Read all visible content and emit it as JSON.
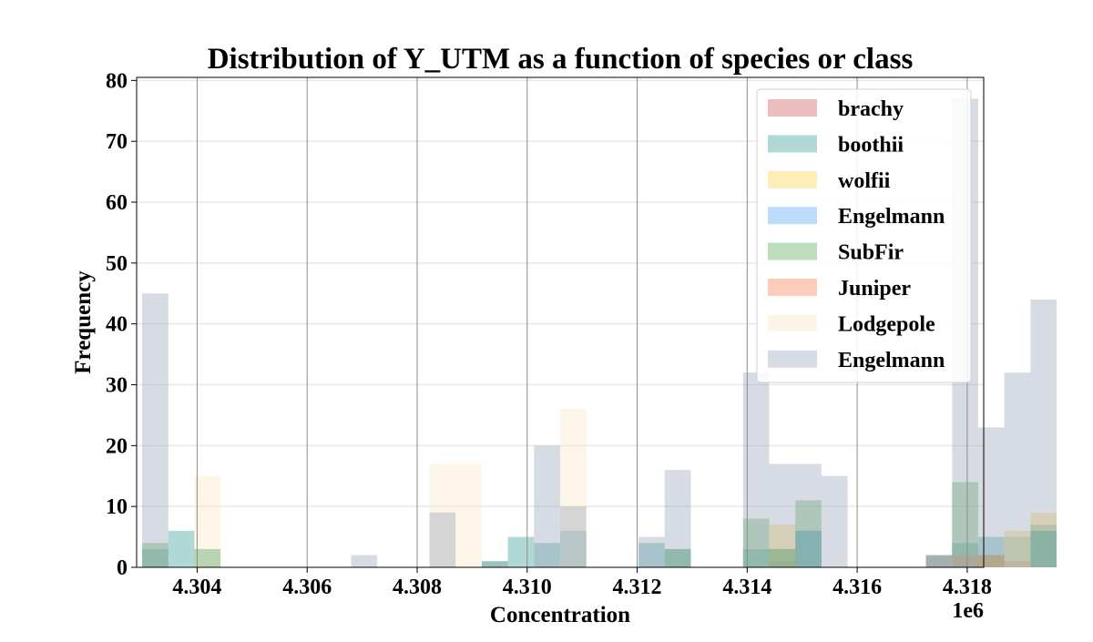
{
  "chart_data": {
    "type": "bar",
    "subtype": "overlaid-histogram",
    "title": "Distribution of Y_UTM as a function of species or class",
    "xlabel": "Concentration",
    "ylabel": "Frequency",
    "x_offset_label": "1e6",
    "xlim": [
      4302900,
      4318300
    ],
    "ylim": [
      0,
      80.5
    ],
    "x_ticks": [
      4304000,
      4306000,
      4308000,
      4310000,
      4312000,
      4314000,
      4316000,
      4318000
    ],
    "x_tick_labels": [
      "4.304",
      "4.306",
      "4.308",
      "4.310",
      "4.312",
      "4.314",
      "4.316",
      "4.318"
    ],
    "y_ticks": [
      0,
      10,
      20,
      30,
      40,
      50,
      60,
      70,
      80
    ],
    "y_tick_labels": [
      "0",
      "10",
      "20",
      "30",
      "40",
      "50",
      "60",
      "70",
      "80"
    ],
    "bin_start": 4303000,
    "bin_width": 475,
    "x_grid": true,
    "y_grid": true,
    "legend_position": "top-right",
    "bar_opacity": 0.4,
    "series": [
      {
        "name": "brachy",
        "color": "#cd5c5c",
        "bins": [
          [
            24,
            1
          ],
          [
            30,
            2
          ],
          [
            33,
            1
          ]
        ]
      },
      {
        "name": "boothii",
        "color": "#3a9e9a",
        "bins": [
          [
            0,
            3
          ],
          [
            1,
            6
          ],
          [
            2,
            3
          ],
          [
            13,
            1
          ],
          [
            14,
            5
          ],
          [
            15,
            4
          ],
          [
            16,
            6
          ],
          [
            19,
            4
          ],
          [
            20,
            3
          ],
          [
            23,
            3
          ],
          [
            24,
            3
          ],
          [
            25,
            6
          ],
          [
            30,
            2
          ],
          [
            31,
            4
          ],
          [
            32,
            5
          ],
          [
            33,
            1
          ],
          [
            34,
            7
          ]
        ]
      },
      {
        "name": "wolfii",
        "color": "#f9d34a",
        "bins": [
          [
            13,
            1
          ],
          [
            24,
            7
          ],
          [
            32,
            2
          ],
          [
            33,
            6
          ],
          [
            34,
            9
          ]
        ]
      },
      {
        "name": "Engelmann",
        "color": "#55a8f5",
        "bins": [
          [
            13,
            1
          ],
          [
            25,
            6
          ],
          [
            34,
            6
          ]
        ]
      },
      {
        "name": "SubFir",
        "color": "#5aac5a",
        "bins": [
          [
            0,
            4
          ],
          [
            2,
            3
          ],
          [
            20,
            3
          ],
          [
            23,
            8
          ],
          [
            24,
            3
          ],
          [
            25,
            11
          ],
          [
            31,
            14
          ],
          [
            32,
            2
          ],
          [
            33,
            5
          ],
          [
            34,
            6
          ]
        ]
      },
      {
        "name": "Juniper",
        "color": "#f98158",
        "bins": [
          [
            31,
            2
          ],
          [
            32,
            2
          ],
          [
            33,
            1
          ]
        ]
      },
      {
        "name": "Lodgepole",
        "color": "#fde5c8",
        "bins": [
          [
            2,
            15
          ],
          [
            11,
            17
          ],
          [
            12,
            17
          ],
          [
            16,
            26
          ],
          [
            33,
            6
          ]
        ]
      },
      {
        "name": "Engelmann",
        "color": "#9aa5b8",
        "bins": [
          [
            0,
            45
          ],
          [
            8,
            2
          ],
          [
            11,
            9
          ],
          [
            15,
            20
          ],
          [
            16,
            10
          ],
          [
            19,
            5
          ],
          [
            20,
            16
          ],
          [
            23,
            32
          ],
          [
            24,
            17
          ],
          [
            25,
            17
          ],
          [
            26,
            15
          ],
          [
            31,
            77
          ],
          [
            32,
            23
          ],
          [
            33,
            32
          ],
          [
            34,
            44
          ]
        ]
      }
    ]
  }
}
